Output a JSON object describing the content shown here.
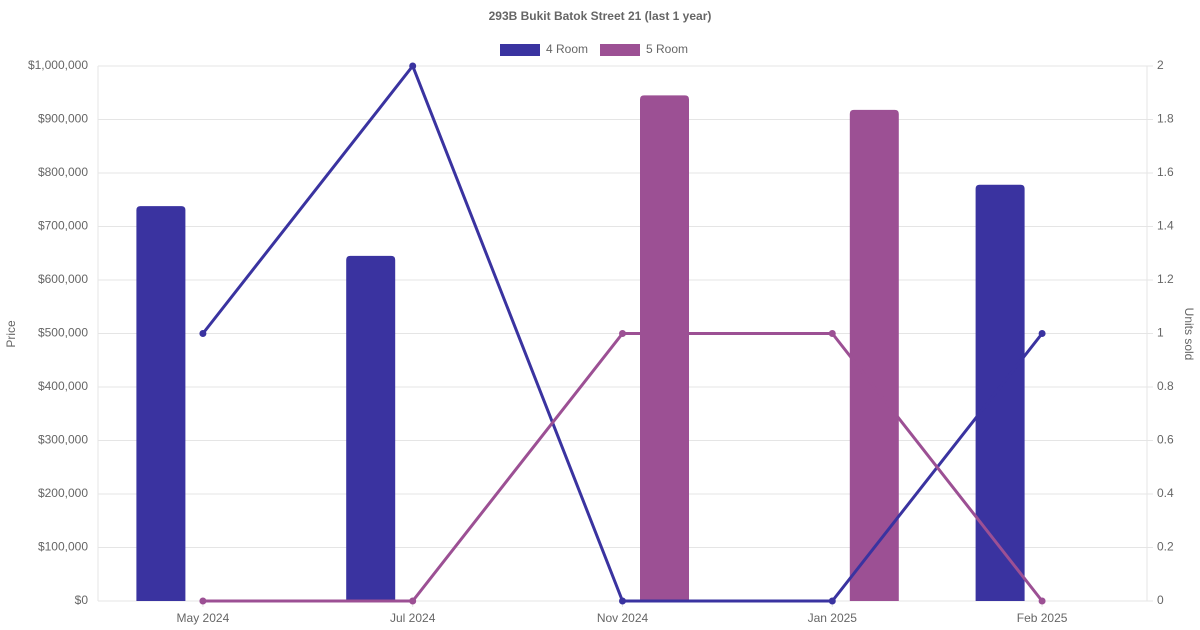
{
  "chart_data": {
    "type": "bar-line",
    "title": "293B Bukit Batok Street 21 (last 1 year)",
    "y_label": "Price",
    "y2_label": "Units sold",
    "categories": [
      "May 2024",
      "Jul 2024",
      "Nov 2024",
      "Jan 2025",
      "Feb 2025"
    ],
    "series": [
      {
        "name": "4 Room",
        "color": "#3a33a0",
        "values": [
          738000,
          645000,
          null,
          null,
          778000
        ],
        "units_sold": [
          1,
          2,
          0,
          0,
          1
        ]
      },
      {
        "name": "5 Room",
        "color": "#9c5094",
        "values": [
          null,
          null,
          945000,
          918000,
          null
        ],
        "units_sold": [
          0,
          0,
          1,
          1,
          0
        ]
      }
    ],
    "ylim": [
      0,
      1000000
    ],
    "yticks": [
      {
        "value": 0,
        "label": "$0"
      },
      {
        "value": 100000,
        "label": "$100,000"
      },
      {
        "value": 200000,
        "label": "$200,000"
      },
      {
        "value": 300000,
        "label": "$300,000"
      },
      {
        "value": 400000,
        "label": "$400,000"
      },
      {
        "value": 500000,
        "label": "$500,000"
      },
      {
        "value": 600000,
        "label": "$600,000"
      },
      {
        "value": 700000,
        "label": "$700,000"
      },
      {
        "value": 800000,
        "label": "$800,000"
      },
      {
        "value": 900000,
        "label": "$900,000"
      },
      {
        "value": 1000000,
        "label": "$1,000,000"
      }
    ],
    "y2lim": [
      0,
      2
    ],
    "y2ticks": [
      0,
      0.2,
      0.4,
      0.6,
      0.8,
      1,
      1.2,
      1.4,
      1.6,
      1.8,
      2
    ],
    "grid": true,
    "legend": "top"
  }
}
